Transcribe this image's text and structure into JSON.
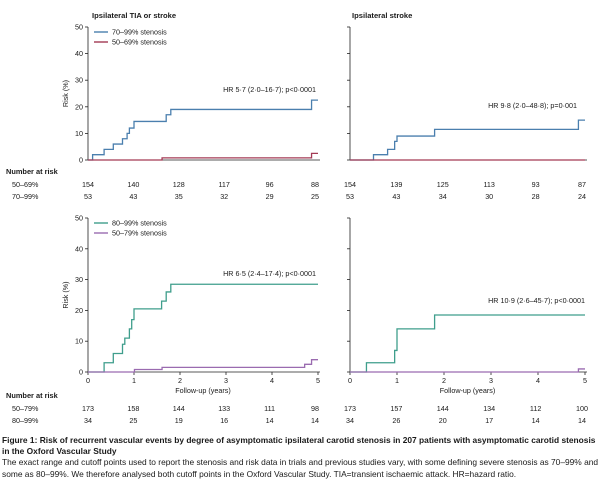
{
  "chart_data": [
    {
      "type": "line",
      "title": "Ipsilateral TIA or stroke",
      "xlabel": "",
      "ylabel": "Risk (%)",
      "xlim": [
        0,
        5
      ],
      "ylim": [
        0,
        50
      ],
      "yticks": [
        0,
        10,
        20,
        30,
        40,
        50
      ],
      "xticks": [],
      "legend": "top-left",
      "annotation": "HR 5·7 (2·0–16·7); p<0·0001",
      "series": [
        {
          "name": "70–99% stenosis",
          "color": "#4a7fae",
          "x": [
            0,
            0.1,
            0.35,
            0.55,
            0.75,
            0.85,
            0.9,
            1.0,
            1.7,
            1.8,
            4.85,
            4.86,
            5.0
          ],
          "y": [
            0,
            2,
            4,
            6,
            8,
            10,
            12,
            14.5,
            17,
            19,
            19,
            22.5,
            22.5
          ]
        },
        {
          "name": "50–69% stenosis",
          "color": "#a33a54",
          "x": [
            0,
            1.6,
            1.61,
            4.85,
            4.86,
            5.0
          ],
          "y": [
            0,
            0,
            0.8,
            0.8,
            2.5,
            2.5
          ]
        }
      ],
      "risk_table": {
        "heading": "Number at risk",
        "rows": [
          {
            "label": "50–69%",
            "values": [
              "154",
              "140",
              "128",
              "117",
              "96",
              "88"
            ]
          },
          {
            "label": "70–99%",
            "values": [
              "53",
              "43",
              "35",
              "32",
              "29",
              "25"
            ]
          }
        ]
      }
    },
    {
      "type": "line",
      "title": "Ipsilateral stroke",
      "xlabel": "",
      "ylabel": "",
      "xlim": [
        0,
        5
      ],
      "ylim": [
        0,
        50
      ],
      "yticks": [
        0,
        10,
        20,
        30,
        40,
        50
      ],
      "xticks": [],
      "annotation": "HR 9·8 (2·0–48·8); p=0·001",
      "series": [
        {
          "color": "#4a7fae",
          "x": [
            0,
            0.5,
            0.8,
            0.95,
            1.0,
            1.7,
            1.8,
            4.85,
            4.86,
            5.0
          ],
          "y": [
            0,
            2,
            4,
            7,
            9,
            9,
            11.5,
            11.5,
            15,
            15
          ]
        },
        {
          "color": "#a33a54",
          "x": [
            0,
            5.0
          ],
          "y": [
            0,
            0
          ]
        }
      ],
      "risk_table": {
        "rows": [
          {
            "label": "",
            "values": [
              "154",
              "139",
              "125",
              "113",
              "93",
              "87"
            ]
          },
          {
            "label": "",
            "values": [
              "53",
              "43",
              "34",
              "30",
              "28",
              "24"
            ]
          }
        ]
      }
    },
    {
      "type": "line",
      "title": "",
      "xlabel": "Follow-up (years)",
      "ylabel": "Risk (%)",
      "xlim": [
        0,
        5
      ],
      "ylim": [
        0,
        50
      ],
      "yticks": [
        0,
        10,
        20,
        30,
        40,
        50
      ],
      "xticks": [
        0,
        1,
        2,
        3,
        4,
        5
      ],
      "legend": "top-left",
      "annotation": "HR 6·5 (2·4–17·4); p<0·0001",
      "series": [
        {
          "name": "80–99% stenosis",
          "color": "#3f9e8c",
          "x": [
            0,
            0.35,
            0.55,
            0.75,
            0.8,
            0.9,
            0.95,
            1.0,
            1.05,
            1.6,
            1.7,
            1.8,
            5.0
          ],
          "y": [
            0,
            3,
            6,
            9,
            11,
            14,
            17,
            20.5,
            20.5,
            23,
            26,
            28.5,
            28.5
          ]
        },
        {
          "name": "50–79% stenosis",
          "color": "#9a6bb0",
          "x": [
            0,
            1.0,
            1.01,
            1.6,
            1.61,
            4.7,
            4.71,
            4.85,
            4.86,
            5.0
          ],
          "y": [
            0,
            0,
            0.8,
            0.8,
            1.5,
            1.5,
            2.5,
            2.5,
            4,
            4
          ]
        }
      ],
      "risk_table": {
        "heading": "Number at risk",
        "rows": [
          {
            "label": "50–79%",
            "values": [
              "173",
              "158",
              "144",
              "133",
              "111",
              "98"
            ]
          },
          {
            "label": "80–99%",
            "values": [
              "34",
              "25",
              "19",
              "16",
              "14",
              "14"
            ]
          }
        ]
      }
    },
    {
      "type": "line",
      "title": "",
      "xlabel": "Follow-up (years)",
      "ylabel": "",
      "xlim": [
        0,
        5
      ],
      "ylim": [
        0,
        50
      ],
      "yticks": [
        0,
        10,
        20,
        30,
        40,
        50
      ],
      "xticks": [
        0,
        1,
        2,
        3,
        4,
        5
      ],
      "annotation": "HR 10·9 (2·6–45·7); p<0·0001",
      "series": [
        {
          "color": "#3f9e8c",
          "x": [
            0,
            0.35,
            0.8,
            0.95,
            1.0,
            1.7,
            1.8,
            5.0
          ],
          "y": [
            0,
            3,
            3,
            7,
            14,
            14,
            18.5,
            18.5
          ]
        },
        {
          "color": "#9a6bb0",
          "x": [
            0,
            4.85,
            4.86,
            5.0
          ],
          "y": [
            0,
            0,
            1,
            1
          ]
        }
      ],
      "risk_table": {
        "rows": [
          {
            "label": "",
            "values": [
              "173",
              "157",
              "144",
              "134",
              "112",
              "100"
            ]
          },
          {
            "label": "",
            "values": [
              "34",
              "26",
              "20",
              "17",
              "14",
              "14"
            ]
          }
        ]
      }
    }
  ],
  "caption": {
    "title": "Figure 1: Risk of recurrent vascular events by degree of asymptomatic ipsilateral carotid stenosis in 207 patients with asymptomatic carotid stenosis in the Oxford Vascular Study",
    "text": "The exact range and cutoff points used to report the stenosis and risk data in trials and previous studies vary, with some defining severe stenosis as 70–99% and some as 80–99%. We therefore analysed both cutoff points in the Oxford Vascular Study. TIA=transient ischaemic attack. HR=hazard ratio."
  }
}
